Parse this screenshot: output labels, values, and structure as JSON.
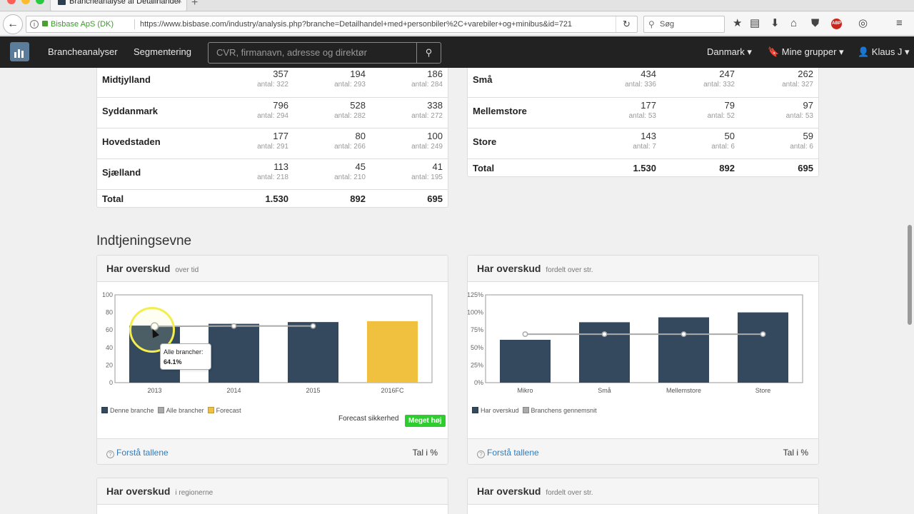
{
  "browser": {
    "tab_title": "Brancheanalyse af Detailhandel",
    "site_identity": "Bisbase ApS (DK)",
    "url": "https://www.bisbase.com/industry/analysis.php?branche=Detailhandel+med+personbiler%2C+varebiler+og+minibus&id=721",
    "search_placeholder": "Søg",
    "new_tab": "+",
    "close_tab": "×",
    "back": "←",
    "reload": "↻",
    "search_glyph": "⚲",
    "icons": [
      "★",
      "▤",
      "⬇",
      "⌂",
      "⛊",
      "ABP",
      "◎",
      "≡"
    ]
  },
  "nav": {
    "items": [
      "Brancheanalyser",
      "Segmentering"
    ],
    "search_placeholder": "CVR, firmanavn, adresse og direktør",
    "search_button": "⚲",
    "right": [
      "Danmark ▾",
      "🔖 Mine grupper ▾",
      "👤 Klaus J ▾"
    ]
  },
  "region_table": {
    "rows": [
      {
        "label": "Midtjylland",
        "values": [
          "357",
          "194",
          "186"
        ],
        "counts": [
          "antal: 322",
          "antal: 293",
          "antal: 284"
        ]
      },
      {
        "label": "Syddanmark",
        "values": [
          "796",
          "528",
          "338"
        ],
        "counts": [
          "antal: 294",
          "antal: 282",
          "antal: 272"
        ]
      },
      {
        "label": "Hovedstaden",
        "values": [
          "177",
          "80",
          "100"
        ],
        "counts": [
          "antal: 291",
          "antal: 266",
          "antal: 249"
        ]
      },
      {
        "label": "Sjælland",
        "values": [
          "113",
          "45",
          "41"
        ],
        "counts": [
          "antal: 218",
          "antal: 210",
          "antal: 195"
        ]
      }
    ],
    "total": {
      "label": "Total",
      "values": [
        "1.530",
        "892",
        "695"
      ]
    }
  },
  "size_table": {
    "rows": [
      {
        "label": "Små",
        "values": [
          "434",
          "247",
          "262"
        ],
        "counts": [
          "antal: 336",
          "antal: 332",
          "antal: 327"
        ]
      },
      {
        "label": "Mellemstore",
        "values": [
          "177",
          "79",
          "97"
        ],
        "counts": [
          "antal: 53",
          "antal: 52",
          "antal: 53"
        ]
      },
      {
        "label": "Store",
        "values": [
          "143",
          "50",
          "59"
        ],
        "counts": [
          "antal: 7",
          "antal: 6",
          "antal: 6"
        ]
      }
    ],
    "total": {
      "label": "Total",
      "values": [
        "1.530",
        "892",
        "695"
      ]
    }
  },
  "section_title": "Indtjeningsevne",
  "panel1": {
    "title": "Har overskud",
    "subtitle": "over tid",
    "forecast_label": "Forecast sikkerhed",
    "forecast_badge": "Meget høj",
    "link": "Forstå tallene",
    "unit": "Tal i %"
  },
  "panel2": {
    "title": "Har overskud",
    "subtitle": "fordelt over str.",
    "link": "Forstå tallene",
    "unit": "Tal i %"
  },
  "panel3": {
    "title": "Har overskud",
    "subtitle": "i regionerne"
  },
  "panel4": {
    "title": "Har overskud",
    "subtitle": "fordelt over str."
  },
  "tooltip": {
    "label": "Alle brancher:",
    "value": "64.1%"
  },
  "colors": {
    "bar": "#34495e",
    "forecast": "#f0c03f",
    "line": "#aaaaaa"
  },
  "chart_data": [
    {
      "type": "bar",
      "title": "Har overskud over tid",
      "categories": [
        "2013",
        "2014",
        "2015",
        "2016FC"
      ],
      "series": [
        {
          "name": "Denne branche",
          "values": [
            65,
            67,
            69,
            null
          ]
        },
        {
          "name": "Forecast",
          "values": [
            null,
            null,
            null,
            70
          ]
        },
        {
          "name": "Alle brancher",
          "kind": "line",
          "values": [
            64.1,
            64.5,
            64.5,
            null
          ]
        }
      ],
      "yticks": [
        "0",
        "20",
        "40",
        "60",
        "80",
        "100"
      ],
      "ylim": [
        0,
        100
      ]
    },
    {
      "type": "bar",
      "title": "Har overskud fordelt over str.",
      "categories": [
        "Mikro",
        "Små",
        "Mellemstore",
        "Store"
      ],
      "series": [
        {
          "name": "Har overskud",
          "values": [
            61,
            86,
            93,
            100
          ]
        },
        {
          "name": "Branchens gennemsnit",
          "kind": "line",
          "values": [
            69,
            69,
            69,
            69
          ]
        }
      ],
      "yticks": [
        "0%",
        "25%",
        "50%",
        "75%",
        "100%",
        "125%"
      ],
      "ylim": [
        0,
        125
      ]
    }
  ]
}
